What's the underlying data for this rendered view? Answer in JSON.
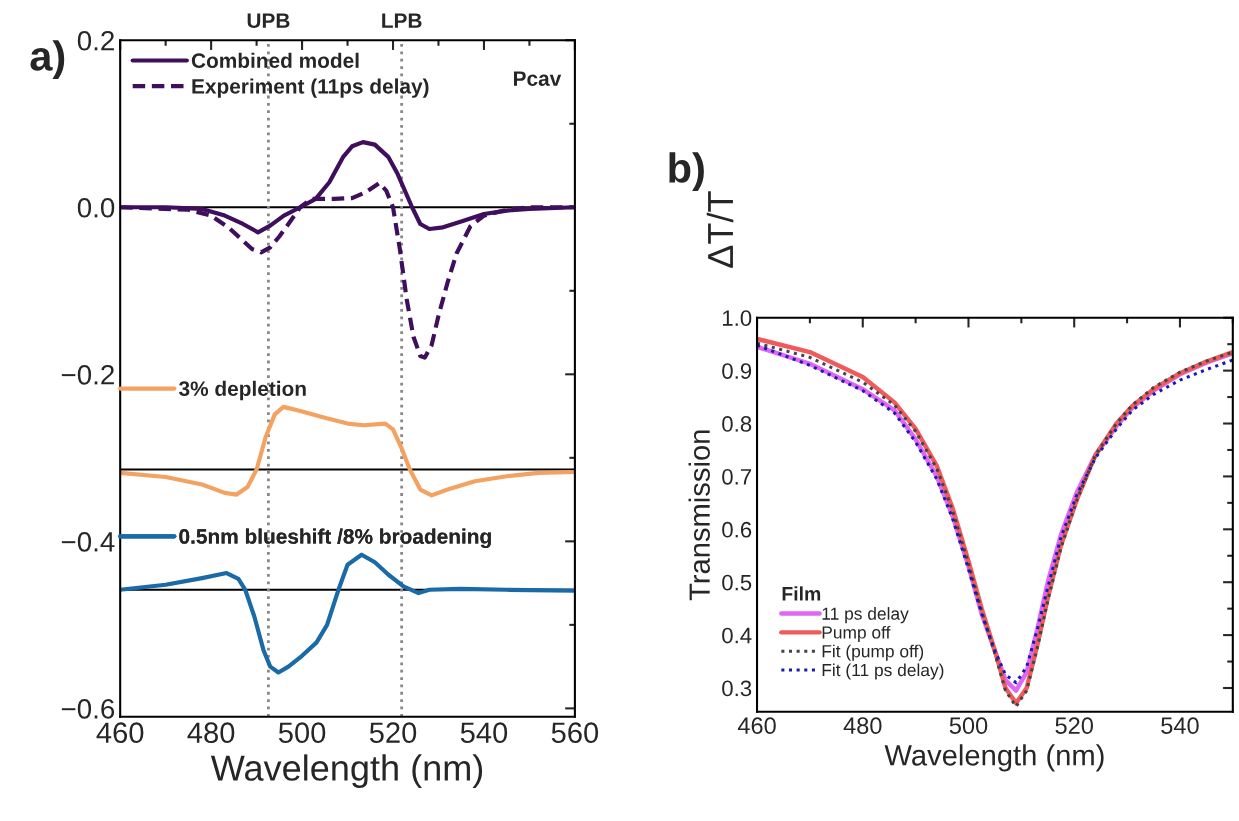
{
  "chart_data": [
    {
      "type": "line",
      "xlabel": "Wavelength (nm)",
      "ylabel": "ΔT/T",
      "xlim": [
        460,
        560
      ],
      "xticks": [
        460,
        480,
        500,
        520,
        540,
        560
      ],
      "ylim": [
        -0.61,
        0.2
      ],
      "yticks": [
        {
          "value": 0.2,
          "label": "0.2"
        },
        {
          "value": 0,
          "label": "0.0"
        },
        {
          "value": -0.2,
          "label": "−0.2"
        },
        {
          "value": -0.4,
          "label": "−0.4"
        },
        {
          "value": -0.6,
          "label": "−0.6"
        }
      ],
      "legend": "top left",
      "grid": false,
      "annotations": [
        "a)",
        "Pcav"
      ],
      "ref_lines": [
        {
          "axis": "y",
          "value": 0,
          "color": "#000000",
          "line_style": "solid"
        },
        {
          "axis": "y",
          "value": -0.314,
          "color": "#000000",
          "line_style": "solid"
        },
        {
          "axis": "y",
          "value": -0.458,
          "color": "#000000",
          "line_style": "solid"
        },
        {
          "axis": "x",
          "value": 492.6,
          "label": "UPB",
          "color": "#888888",
          "line_style": "dotted"
        },
        {
          "axis": "x",
          "value": 521.9,
          "label": "LPB",
          "color": "#888888",
          "line_style": "dotted"
        }
      ],
      "series": [
        {
          "name": "Combined model",
          "color": "#3f0f5e",
          "line_style": "solid",
          "x": [
            460,
            470,
            478,
            483,
            487,
            490.3,
            493,
            496,
            499.6,
            503,
            506,
            509,
            511,
            513.4,
            516,
            519,
            521,
            523,
            524.2,
            526,
            528,
            531,
            535,
            540,
            545,
            550,
            560
          ],
          "values": [
            0,
            0,
            -0.002,
            -0.01,
            -0.02,
            -0.03,
            -0.022,
            -0.01,
            0,
            0.01,
            0.03,
            0.06,
            0.073,
            0.078,
            0.075,
            0.06,
            0.04,
            0.015,
            0,
            -0.02,
            -0.026,
            -0.024,
            -0.017,
            -0.008,
            -0.004,
            -0.002,
            0
          ]
        },
        {
          "name": "Experiment (11ps delay)",
          "color": "#3f0f5e",
          "line_style": "dashed",
          "x": [
            460,
            475,
            480,
            484,
            487,
            489,
            491,
            493,
            495,
            497,
            499.6,
            502,
            507,
            511,
            514,
            517,
            518.5,
            520,
            521.5,
            523,
            524.5,
            526,
            527,
            528.5,
            530,
            532,
            534,
            537,
            540,
            545,
            550,
            560
          ],
          "values": [
            0,
            -0.003,
            -0.01,
            -0.025,
            -0.04,
            -0.05,
            -0.054,
            -0.048,
            -0.035,
            -0.02,
            0,
            0.01,
            0.01,
            0.011,
            0.018,
            0.029,
            0.02,
            0,
            -0.05,
            -0.11,
            -0.155,
            -0.178,
            -0.18,
            -0.165,
            -0.13,
            -0.09,
            -0.055,
            -0.023,
            -0.01,
            -0.003,
            0,
            0
          ]
        },
        {
          "name": "3% depletion",
          "color": "#f4a261",
          "line_style": "solid",
          "x": [
            460,
            470,
            478,
            483,
            485.6,
            488,
            490,
            492,
            494,
            495.9,
            499,
            505,
            510,
            513.5,
            518.3,
            520,
            522,
            523.7,
            526,
            528.5,
            532,
            538,
            545,
            552,
            560
          ],
          "values": [
            -0.318,
            -0.323,
            -0.332,
            -0.342,
            -0.344,
            -0.335,
            -0.314,
            -0.275,
            -0.248,
            -0.239,
            -0.243,
            -0.252,
            -0.259,
            -0.261,
            -0.259,
            -0.266,
            -0.29,
            -0.314,
            -0.338,
            -0.345,
            -0.338,
            -0.328,
            -0.322,
            -0.318,
            -0.317
          ]
        },
        {
          "name": "0.5nm blueshift /8% broadening",
          "color": "#1a6aa8",
          "line_style": "solid",
          "x": [
            460,
            470,
            478,
            483.4,
            486,
            487.5,
            489.5,
            491.5,
            493,
            494.8,
            497,
            500,
            503.2,
            505.5,
            508,
            510,
            513.1,
            516,
            519,
            522.3,
            525.6,
            528,
            534.8,
            545,
            560
          ],
          "values": [
            -0.458,
            -0.452,
            -0.444,
            -0.438,
            -0.445,
            -0.458,
            -0.49,
            -0.53,
            -0.55,
            -0.557,
            -0.55,
            -0.537,
            -0.521,
            -0.5,
            -0.458,
            -0.428,
            -0.416,
            -0.425,
            -0.44,
            -0.454,
            -0.462,
            -0.458,
            -0.457,
            -0.458,
            -0.459
          ]
        }
      ]
    },
    {
      "type": "line",
      "xlabel": "Wavelength (nm)",
      "ylabel": "Transmission",
      "xlim": [
        460,
        550
      ],
      "xticks": [
        460,
        480,
        500,
        520,
        540
      ],
      "ylim": [
        0.255,
        1.0
      ],
      "yticks": [
        0.3,
        0.4,
        0.5,
        0.6,
        0.7,
        0.8,
        0.9,
        {
          "value": 1,
          "label": "1.0"
        }
      ],
      "legend": "bottom left",
      "legend_title": "Film",
      "grid": false,
      "annotations": [
        "b)"
      ],
      "x": [
        460,
        470,
        480,
        486,
        490,
        494,
        497,
        500,
        502.5,
        505,
        507,
        509,
        511,
        513,
        515,
        517.5,
        520.5,
        524,
        528,
        531,
        535,
        540,
        545,
        550
      ],
      "series": [
        {
          "name": "11 ps delay",
          "color": "#e066f5",
          "line_style": "solid",
          "values": [
            0.945,
            0.913,
            0.865,
            0.825,
            0.77,
            0.7,
            0.625,
            0.53,
            0.44,
            0.37,
            0.315,
            0.295,
            0.33,
            0.41,
            0.5,
            0.59,
            0.67,
            0.74,
            0.795,
            0.83,
            0.862,
            0.893,
            0.915,
            0.933
          ]
        },
        {
          "name": "Pump off",
          "color": "#f05a5a",
          "line_style": "solid",
          "values": [
            0.96,
            0.935,
            0.888,
            0.84,
            0.79,
            0.72,
            0.64,
            0.54,
            0.45,
            0.37,
            0.3,
            0.271,
            0.3,
            0.38,
            0.47,
            0.57,
            0.656,
            0.74,
            0.8,
            0.833,
            0.865,
            0.895,
            0.917,
            0.935
          ]
        },
        {
          "name": "Fit (pump off)",
          "color": "#444444",
          "line_style": "dotted",
          "values": [
            0.952,
            0.925,
            0.878,
            0.835,
            0.785,
            0.715,
            0.635,
            0.535,
            0.445,
            0.365,
            0.295,
            0.265,
            0.295,
            0.375,
            0.465,
            0.565,
            0.655,
            0.74,
            0.8,
            0.835,
            0.868,
            0.897,
            0.918,
            0.935
          ]
        },
        {
          "name": "Fit (11 ps delay)",
          "color": "#1a1ab0",
          "line_style": "dotted",
          "values": [
            0.948,
            0.91,
            0.862,
            0.82,
            0.765,
            0.695,
            0.62,
            0.525,
            0.44,
            0.37,
            0.325,
            0.31,
            0.34,
            0.41,
            0.49,
            0.585,
            0.665,
            0.735,
            0.79,
            0.825,
            0.855,
            0.882,
            0.902,
            0.92
          ]
        }
      ]
    }
  ]
}
